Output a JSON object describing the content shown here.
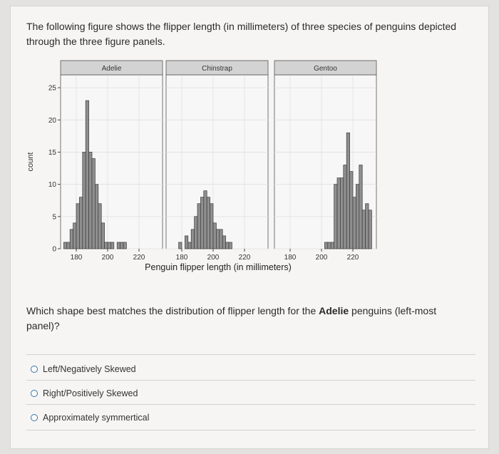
{
  "intro_text": "The following figure shows the flipper length (in millimeters) of three species of penguins depicted through the three figure panels.",
  "question": {
    "before": "Which shape best matches the distribution of flipper length for the ",
    "bold": "Adelie",
    "after": " penguins (left-most panel)?"
  },
  "options": [
    {
      "label": "Left/Negatively Skewed"
    },
    {
      "label": "Right/Positively Skewed"
    },
    {
      "label": "Approximately symmertical"
    }
  ],
  "chart_data": {
    "type": "bar",
    "xlabel": "Penguin flipper length (in millimeters)",
    "ylabel": "count",
    "xlim": [
      170,
      235
    ],
    "ylim": [
      0,
      27
    ],
    "yticks": [
      0,
      5,
      10,
      15,
      20,
      25
    ],
    "xticks": [
      180,
      200,
      220
    ],
    "bin_width": 2,
    "colors": {
      "bar_fill": "#8f8f8f",
      "bar_stroke": "#3a3a3a",
      "strip": "#d3d3d3",
      "panel": "#f7f7f7",
      "grid": "#e4e4e4"
    },
    "panels": [
      {
        "name": "Adelie",
        "bin_starts": [
          172,
          174,
          176,
          178,
          180,
          182,
          184,
          186,
          188,
          190,
          192,
          194,
          196,
          198,
          200,
          202,
          204,
          206,
          208,
          210
        ],
        "counts": [
          1,
          1,
          3,
          4,
          7,
          8,
          15,
          23,
          15,
          14,
          10,
          7,
          4,
          1,
          1,
          1,
          0,
          1,
          1,
          1
        ]
      },
      {
        "name": "Chinstrap",
        "bin_starts": [
          178,
          180,
          182,
          184,
          186,
          188,
          190,
          192,
          194,
          196,
          198,
          200,
          202,
          204,
          206,
          208,
          210,
          212
        ],
        "counts": [
          1,
          0,
          2,
          1,
          3,
          5,
          7,
          8,
          9,
          8,
          7,
          4,
          3,
          3,
          2,
          1,
          1,
          0
        ]
      },
      {
        "name": "Gentoo",
        "bin_starts": [
          202,
          204,
          206,
          208,
          210,
          212,
          214,
          216,
          218,
          220,
          222,
          224,
          226,
          228,
          230
        ],
        "counts": [
          1,
          1,
          1,
          10,
          11,
          11,
          13,
          18,
          12,
          8,
          10,
          13,
          6,
          7,
          6
        ]
      }
    ]
  }
}
